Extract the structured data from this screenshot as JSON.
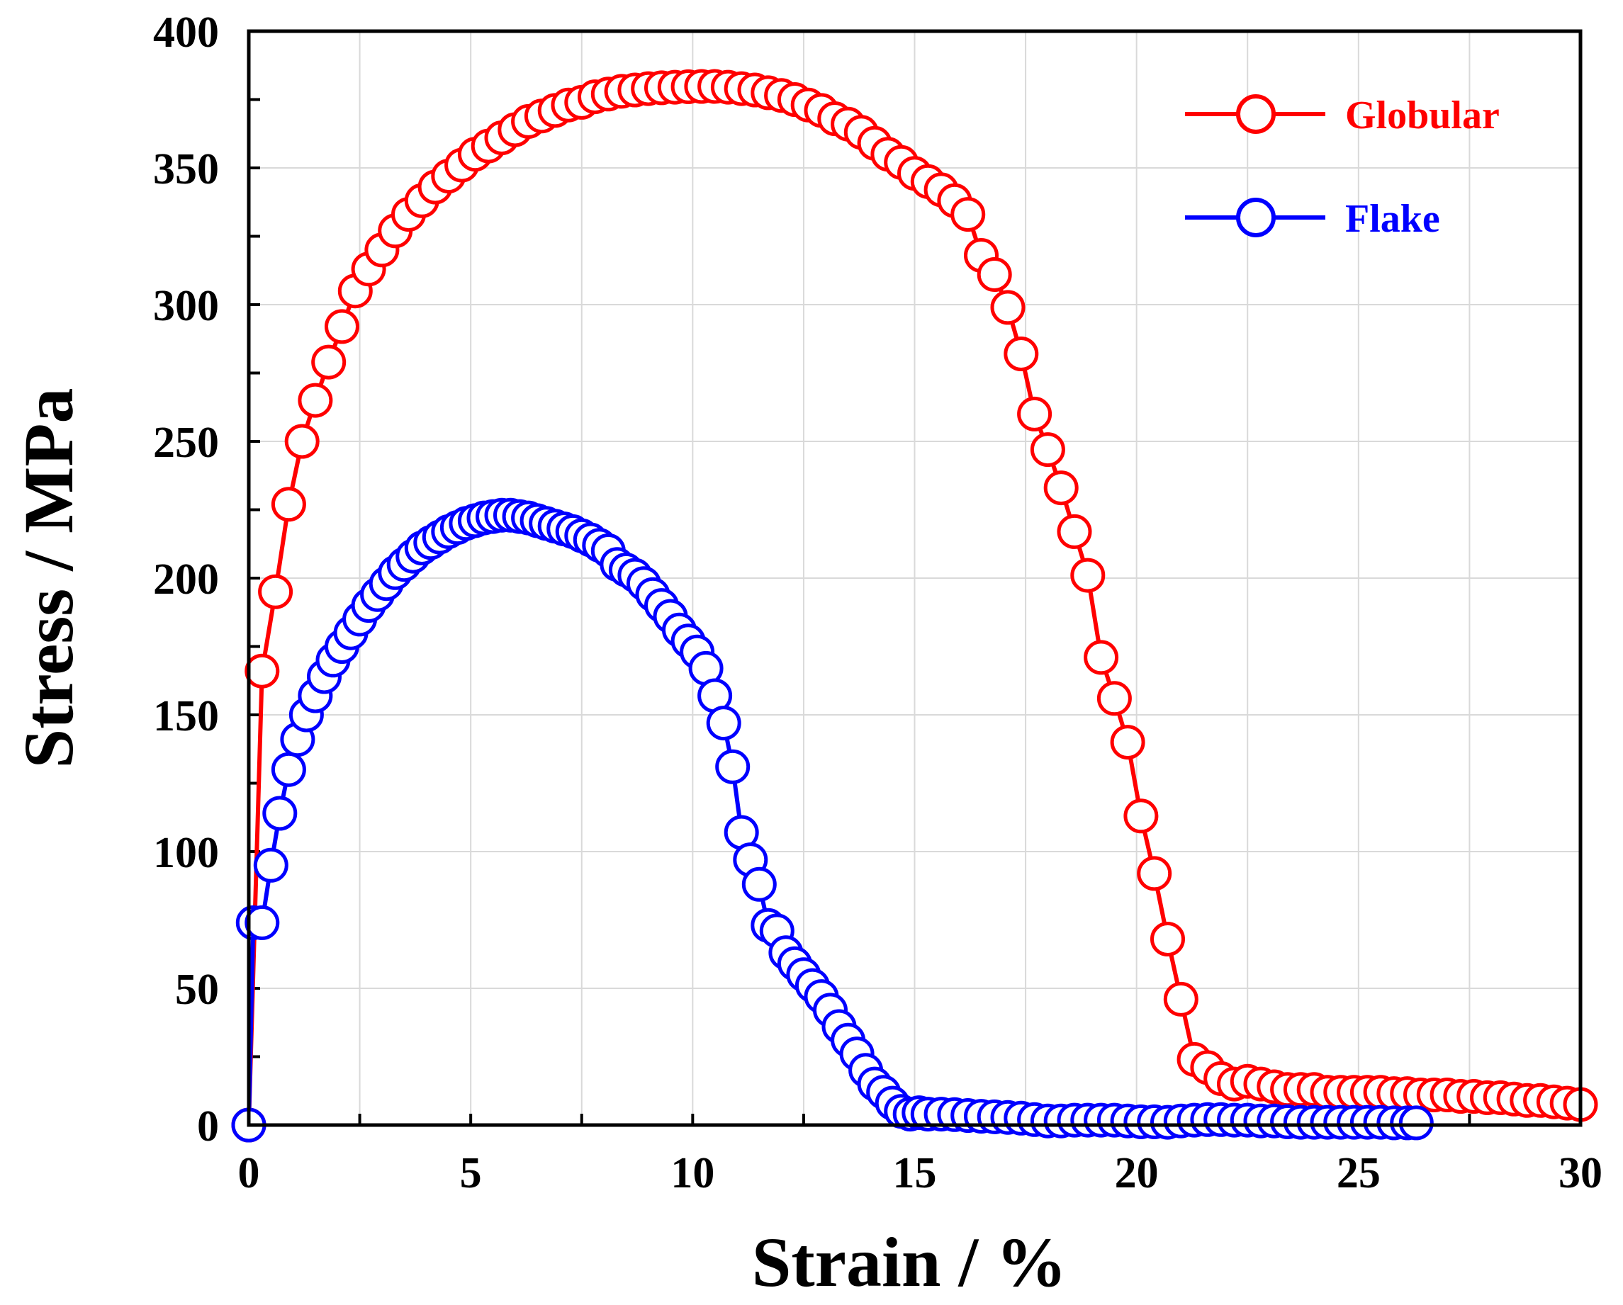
{
  "chart_data": {
    "type": "line",
    "title": "",
    "xlabel": "Strain / %",
    "ylabel": "Stress / MPa",
    "xlim": [
      0,
      30
    ],
    "ylim": [
      0,
      400
    ],
    "xticks": [
      0,
      5,
      10,
      15,
      20,
      25,
      30
    ],
    "yticks": [
      0,
      50,
      100,
      150,
      200,
      250,
      300,
      350,
      400
    ],
    "grid": true,
    "legend_position": "top-right",
    "series": [
      {
        "name": "Globular",
        "color": "#ff0000",
        "marker": "open-circle",
        "points": [
          [
            0,
            0
          ],
          [
            0.3,
            166
          ],
          [
            0.6,
            195
          ],
          [
            0.9,
            227
          ],
          [
            1.2,
            250
          ],
          [
            1.5,
            265
          ],
          [
            1.8,
            279
          ],
          [
            2.1,
            292
          ],
          [
            2.4,
            305
          ],
          [
            2.7,
            313
          ],
          [
            3.0,
            320
          ],
          [
            3.3,
            327
          ],
          [
            3.6,
            333
          ],
          [
            3.9,
            338
          ],
          [
            4.2,
            343
          ],
          [
            4.5,
            347
          ],
          [
            4.8,
            351
          ],
          [
            5.1,
            355
          ],
          [
            5.4,
            358
          ],
          [
            5.7,
            361
          ],
          [
            6.0,
            364
          ],
          [
            6.3,
            367
          ],
          [
            6.6,
            369
          ],
          [
            6.9,
            371
          ],
          [
            7.2,
            373
          ],
          [
            7.5,
            374
          ],
          [
            7.8,
            376
          ],
          [
            8.1,
            377
          ],
          [
            8.4,
            378
          ],
          [
            8.7,
            378.5
          ],
          [
            9.0,
            379
          ],
          [
            9.3,
            379.3
          ],
          [
            9.6,
            379.5
          ],
          [
            9.9,
            379.7
          ],
          [
            10.2,
            379.8
          ],
          [
            10.5,
            379.8
          ],
          [
            10.8,
            379.5
          ],
          [
            11.1,
            379
          ],
          [
            11.4,
            378.5
          ],
          [
            11.7,
            377.5
          ],
          [
            12.0,
            376.5
          ],
          [
            12.3,
            375
          ],
          [
            12.6,
            373
          ],
          [
            12.9,
            371
          ],
          [
            13.2,
            368
          ],
          [
            13.5,
            366
          ],
          [
            13.8,
            363
          ],
          [
            14.1,
            359
          ],
          [
            14.4,
            355
          ],
          [
            14.7,
            352
          ],
          [
            15.0,
            348
          ],
          [
            15.3,
            345
          ],
          [
            15.6,
            342
          ],
          [
            15.9,
            338
          ],
          [
            16.2,
            333
          ],
          [
            16.5,
            318
          ],
          [
            16.8,
            311
          ],
          [
            17.1,
            299
          ],
          [
            17.4,
            282
          ],
          [
            17.7,
            260
          ],
          [
            18.0,
            247
          ],
          [
            18.3,
            233
          ],
          [
            18.6,
            217
          ],
          [
            18.9,
            201
          ],
          [
            19.2,
            171
          ],
          [
            19.5,
            156
          ],
          [
            19.8,
            140
          ],
          [
            20.1,
            113
          ],
          [
            20.4,
            92
          ],
          [
            20.7,
            68
          ],
          [
            21.0,
            46
          ],
          [
            21.3,
            24
          ],
          [
            21.6,
            21
          ],
          [
            21.9,
            17
          ],
          [
            22.2,
            15
          ],
          [
            22.5,
            16
          ],
          [
            22.8,
            15
          ],
          [
            23.1,
            14
          ],
          [
            23.4,
            13
          ],
          [
            23.7,
            13
          ],
          [
            24.0,
            13
          ],
          [
            24.3,
            12
          ],
          [
            24.6,
            12
          ],
          [
            24.9,
            12
          ],
          [
            25.2,
            12
          ],
          [
            25.5,
            12
          ],
          [
            25.8,
            11.5
          ],
          [
            26.1,
            11.5
          ],
          [
            26.4,
            11
          ],
          [
            26.7,
            11
          ],
          [
            27.0,
            11
          ],
          [
            27.3,
            10.5
          ],
          [
            27.6,
            10.5
          ],
          [
            27.9,
            10
          ],
          [
            28.2,
            10
          ],
          [
            28.5,
            9.5
          ],
          [
            28.8,
            9
          ],
          [
            29.1,
            9
          ],
          [
            29.4,
            8.5
          ],
          [
            29.7,
            8
          ],
          [
            30.0,
            7.5
          ]
        ]
      },
      {
        "name": "Flake",
        "color": "#0000ff",
        "marker": "open-circle",
        "points": [
          [
            0,
            0
          ],
          [
            0.1,
            74
          ],
          [
            0.3,
            74
          ],
          [
            0.5,
            95
          ],
          [
            0.7,
            114
          ],
          [
            0.9,
            130
          ],
          [
            1.1,
            141
          ],
          [
            1.3,
            150
          ],
          [
            1.5,
            157
          ],
          [
            1.7,
            164
          ],
          [
            1.9,
            170
          ],
          [
            2.1,
            175
          ],
          [
            2.3,
            180
          ],
          [
            2.5,
            185
          ],
          [
            2.7,
            190
          ],
          [
            2.9,
            194
          ],
          [
            3.1,
            198
          ],
          [
            3.3,
            202
          ],
          [
            3.5,
            205
          ],
          [
            3.7,
            208
          ],
          [
            3.9,
            211
          ],
          [
            4.1,
            213
          ],
          [
            4.3,
            215
          ],
          [
            4.5,
            217
          ],
          [
            4.7,
            218.5
          ],
          [
            4.9,
            220
          ],
          [
            5.1,
            221
          ],
          [
            5.3,
            222
          ],
          [
            5.5,
            222.5
          ],
          [
            5.7,
            223
          ],
          [
            5.9,
            223
          ],
          [
            6.1,
            222.5
          ],
          [
            6.3,
            222
          ],
          [
            6.5,
            221
          ],
          [
            6.7,
            220
          ],
          [
            6.9,
            219
          ],
          [
            7.1,
            218
          ],
          [
            7.3,
            217
          ],
          [
            7.5,
            215.5
          ],
          [
            7.7,
            214
          ],
          [
            7.9,
            212
          ],
          [
            8.1,
            210
          ],
          [
            8.3,
            205
          ],
          [
            8.5,
            203
          ],
          [
            8.7,
            201
          ],
          [
            8.9,
            198
          ],
          [
            9.1,
            194
          ],
          [
            9.3,
            190
          ],
          [
            9.5,
            186
          ],
          [
            9.7,
            181
          ],
          [
            9.9,
            177
          ],
          [
            10.1,
            173
          ],
          [
            10.3,
            167
          ],
          [
            10.5,
            157
          ],
          [
            10.7,
            147
          ],
          [
            10.9,
            131
          ],
          [
            11.1,
            107
          ],
          [
            11.3,
            97
          ],
          [
            11.5,
            88
          ],
          [
            11.7,
            73
          ],
          [
            11.9,
            71
          ],
          [
            12.1,
            63
          ],
          [
            12.3,
            59
          ],
          [
            12.5,
            55
          ],
          [
            12.7,
            51
          ],
          [
            12.9,
            47
          ],
          [
            13.1,
            42
          ],
          [
            13.3,
            36
          ],
          [
            13.5,
            31
          ],
          [
            13.7,
            26
          ],
          [
            13.9,
            20
          ],
          [
            14.1,
            15
          ],
          [
            14.3,
            12
          ],
          [
            14.5,
            8
          ],
          [
            14.7,
            5
          ],
          [
            14.9,
            4
          ],
          [
            15.1,
            4.5
          ],
          [
            15.3,
            4
          ],
          [
            15.6,
            4
          ],
          [
            15.9,
            3.8
          ],
          [
            16.2,
            3.5
          ],
          [
            16.5,
            3.2
          ],
          [
            16.8,
            3
          ],
          [
            17.1,
            2.8
          ],
          [
            17.4,
            2.5
          ],
          [
            17.7,
            2
          ],
          [
            18.0,
            1.5
          ],
          [
            18.3,
            1.5
          ],
          [
            18.6,
            1.8
          ],
          [
            18.9,
            1.8
          ],
          [
            19.2,
            1.8
          ],
          [
            19.5,
            1.8
          ],
          [
            19.8,
            1.5
          ],
          [
            20.1,
            1.2
          ],
          [
            20.4,
            1.2
          ],
          [
            20.7,
            1
          ],
          [
            21.0,
            1.5
          ],
          [
            21.3,
            1.8
          ],
          [
            21.6,
            2
          ],
          [
            21.9,
            2
          ],
          [
            22.2,
            1.8
          ],
          [
            22.5,
            1.8
          ],
          [
            22.8,
            1.5
          ],
          [
            23.1,
            1.5
          ],
          [
            23.4,
            1.2
          ],
          [
            23.7,
            1
          ],
          [
            24.0,
            1
          ],
          [
            24.3,
            1
          ],
          [
            24.6,
            1
          ],
          [
            24.9,
            1
          ],
          [
            25.2,
            1
          ],
          [
            25.5,
            1
          ],
          [
            25.8,
            0.8
          ],
          [
            26.1,
            0.8
          ],
          [
            26.3,
            0.8
          ]
        ]
      }
    ]
  }
}
